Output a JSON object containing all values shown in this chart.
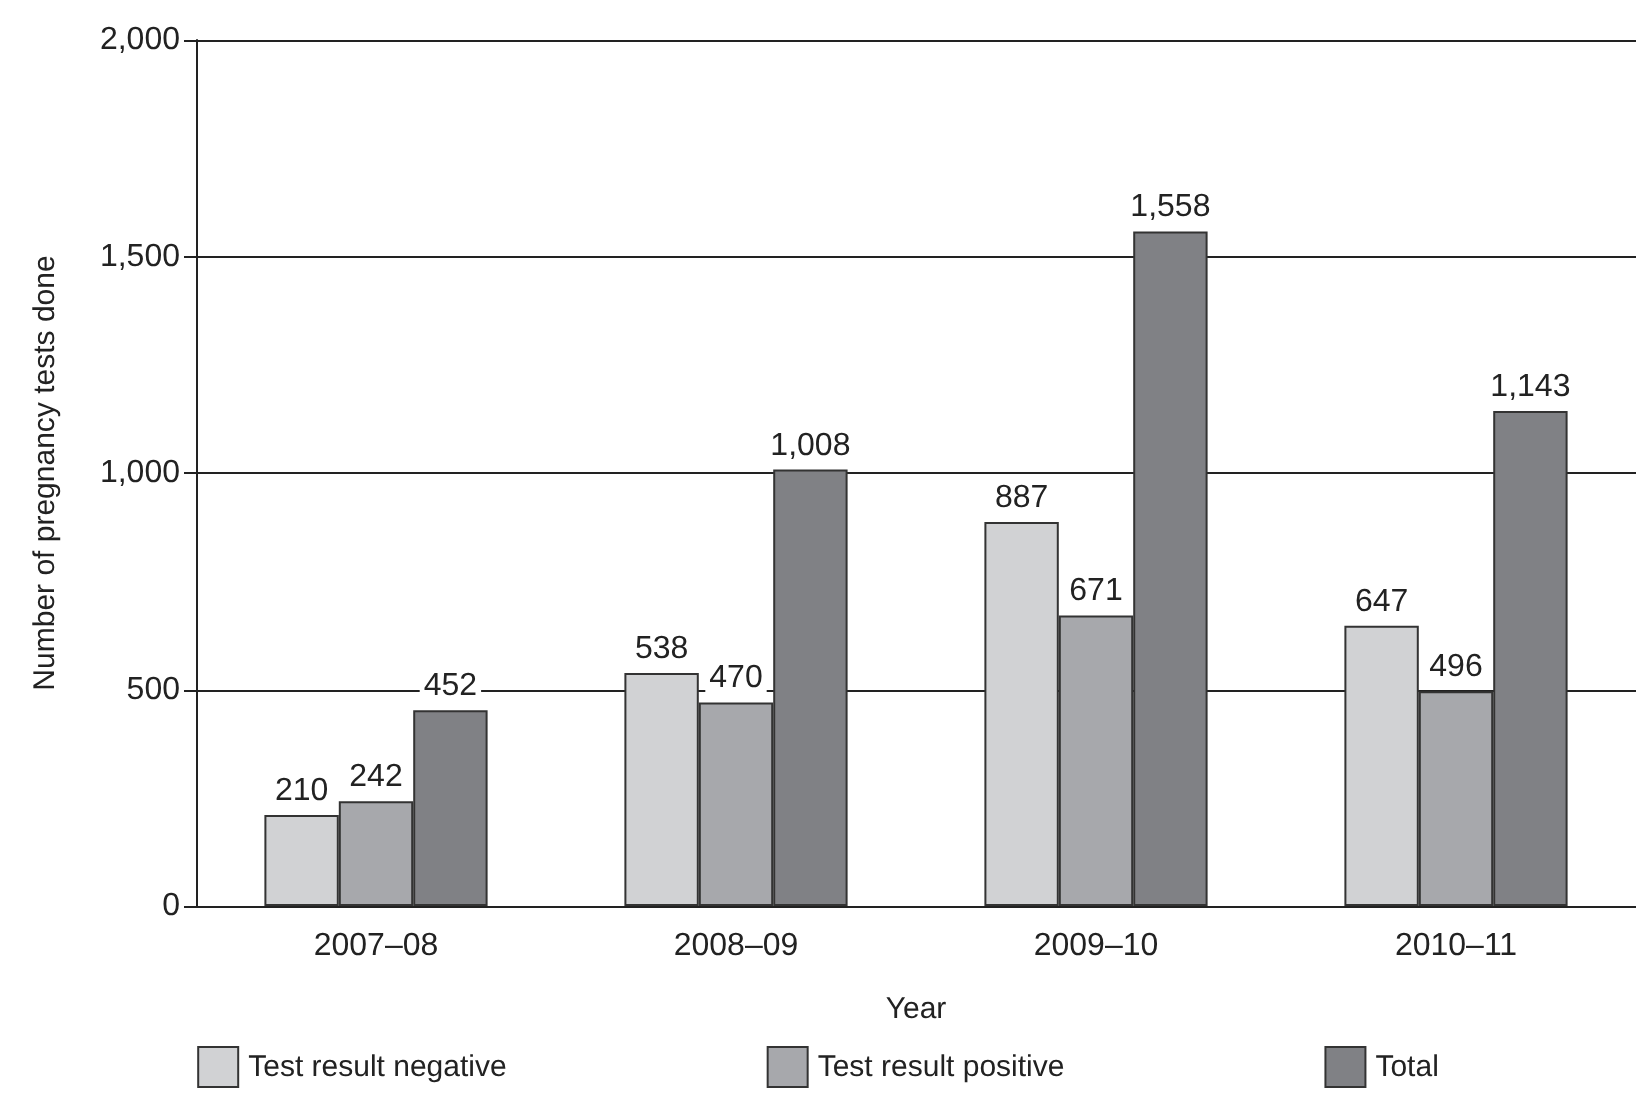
{
  "chart_data": {
    "type": "bar",
    "xlabel": "Year",
    "ylabel": "Number of pregnancy tests done",
    "categories": [
      "2007–08",
      "2008–09",
      "2009–10",
      "2010–11"
    ],
    "series": [
      {
        "name": "Test result negative",
        "color": "#d1d2d4",
        "values": [
          210,
          538,
          887,
          647
        ],
        "value_labels": [
          "210",
          "538",
          "887",
          "647"
        ]
      },
      {
        "name": "Test result positive",
        "color": "#a7a8ac",
        "values": [
          242,
          470,
          671,
          496
        ],
        "value_labels": [
          "242",
          "470",
          "671",
          "496"
        ]
      },
      {
        "name": "Total",
        "color": "#808185",
        "values": [
          452,
          1008,
          1558,
          1143
        ],
        "value_labels": [
          "452",
          "1,008",
          "1,558",
          "1,143"
        ]
      }
    ],
    "ylim": [
      0,
      2000
    ],
    "yticks": [
      0,
      500,
      {
        "value": 1000,
        "label": "1,000"
      },
      {
        "value": 1500,
        "label": "1,500"
      },
      {
        "value": 2000,
        "label": "2,000"
      }
    ],
    "grid": "y",
    "legend": "bottom"
  }
}
